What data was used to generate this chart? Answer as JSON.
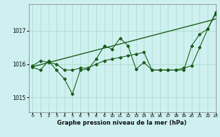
{
  "title": "Graphe pression niveau de la mer (hPa)",
  "bg_color": "#cff0f0",
  "grid_color": "#aaddcc",
  "line_color": "#1a5c1a",
  "xlim": [
    -0.5,
    23
  ],
  "ylim": [
    1014.55,
    1017.8
  ],
  "yticks": [
    1015,
    1016,
    1017
  ],
  "xticks": [
    0,
    1,
    2,
    3,
    4,
    5,
    6,
    7,
    8,
    9,
    10,
    11,
    12,
    13,
    14,
    15,
    16,
    17,
    18,
    19,
    20,
    21,
    22,
    23
  ],
  "series1_x": [
    0,
    1,
    2,
    3,
    4,
    5,
    6,
    7,
    8,
    9,
    10,
    11,
    12,
    13,
    14,
    15,
    16,
    17,
    18,
    19,
    20,
    21,
    22,
    23
  ],
  "series1_y": [
    1015.9,
    1015.82,
    1016.1,
    1015.82,
    1015.55,
    1015.1,
    1015.82,
    1015.85,
    1016.15,
    1016.55,
    1016.45,
    1016.78,
    1016.55,
    1015.85,
    1016.05,
    1015.82,
    1015.82,
    1015.82,
    1015.82,
    1015.82,
    1016.55,
    1016.9,
    1017.05,
    1017.55
  ],
  "series2_x": [
    0,
    1,
    2,
    3,
    4,
    5,
    6,
    7,
    8,
    9,
    10,
    11,
    12,
    13,
    14,
    15,
    16,
    17,
    18,
    19,
    20,
    21,
    22,
    23
  ],
  "series2_y": [
    1015.95,
    1016.1,
    1016.05,
    1016.0,
    1015.82,
    1015.82,
    1015.88,
    1015.88,
    1016.0,
    1016.1,
    1016.15,
    1016.2,
    1016.25,
    1016.3,
    1016.35,
    1015.82,
    1015.82,
    1015.82,
    1015.82,
    1015.88,
    1015.95,
    1016.5,
    1017.05,
    1017.5
  ],
  "trend_x": [
    0,
    23
  ],
  "trend_y": [
    1015.92,
    1017.35
  ]
}
